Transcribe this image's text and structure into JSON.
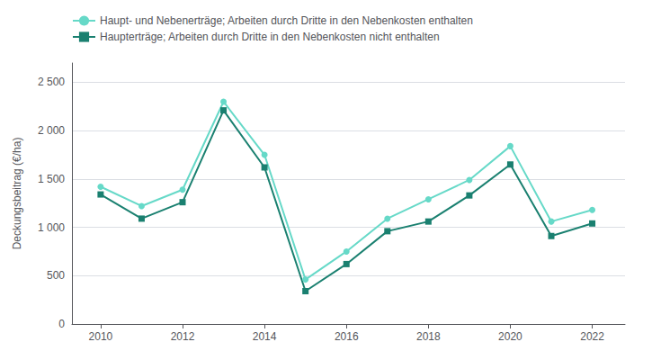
{
  "chart_data": {
    "type": "line",
    "x": [
      2010,
      2011,
      2012,
      2013,
      2014,
      2015,
      2016,
      2017,
      2018,
      2019,
      2020,
      2021,
      2022
    ],
    "series": [
      {
        "name": "Haupt- und Nebenerträge; Arbeiten durch Dritte in den Nebenkosten enthalten",
        "color": "#66d9c8",
        "marker": "circle",
        "values": [
          1420,
          1220,
          1390,
          2300,
          1750,
          460,
          750,
          1090,
          1290,
          1490,
          1840,
          1060,
          1180
        ]
      },
      {
        "name": "Haupterträge; Arbeiten durch Dritte in den Nebenkosten nicht enthalten",
        "color": "#1a8070",
        "marker": "square",
        "values": [
          1340,
          1090,
          1260,
          2210,
          1620,
          340,
          620,
          960,
          1060,
          1330,
          1650,
          910,
          1040
        ]
      }
    ],
    "ylabel": "Deckungsbeitrag (€/ha)",
    "xlim": [
      2009.3,
      2022.8
    ],
    "xticks": [
      2010,
      2012,
      2014,
      2016,
      2018,
      2020,
      2022
    ],
    "ylim": [
      0,
      2700
    ],
    "yticks": [
      0,
      500,
      {
        "value": 1000,
        "label": "1 000"
      },
      {
        "value": 1500,
        "label": "1 500"
      },
      {
        "value": 2000,
        "label": "2 000"
      },
      {
        "value": 2500,
        "label": "2 500"
      }
    ],
    "grid": true,
    "legend": "top-left"
  }
}
